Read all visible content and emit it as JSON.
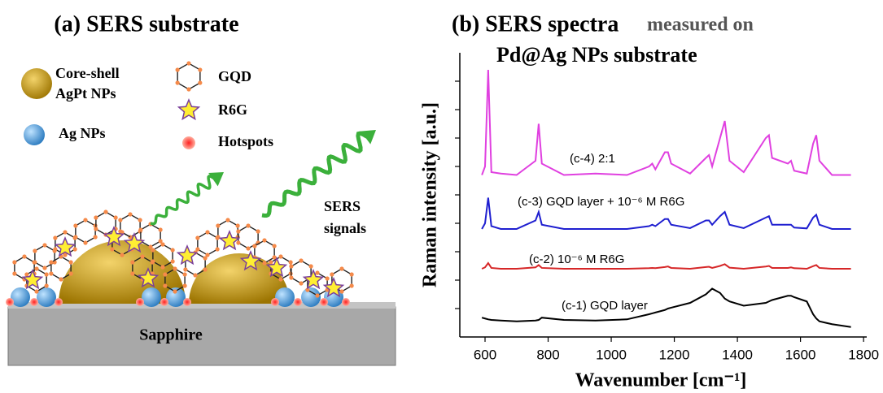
{
  "panel_a": {
    "title": "(a) SERS substrate",
    "legend": {
      "core_shell": [
        "Core-shell",
        "AgPt NPs"
      ],
      "ag": "Ag NPs",
      "gqd": "GQD",
      "r6g": "R6G",
      "hotspots": "Hotspots"
    },
    "signals": [
      "SERS",
      "signals"
    ],
    "substrate": "Sapphire"
  },
  "chart_data": {
    "type": "line",
    "title": [
      "(b) SERS spectra",
      "measured on",
      "Pd@Ag NPs substrate"
    ],
    "x_label": "Wavenumber [cm⁻¹]",
    "y_label": "Raman intensity [a.u.]",
    "xlim": [
      520,
      1810
    ],
    "ylim": [
      0,
      100
    ],
    "xticks": [
      600,
      800,
      1000,
      1200,
      1400,
      1600,
      1800
    ],
    "x": [
      590,
      600,
      610,
      620,
      650,
      700,
      760,
      770,
      780,
      850,
      950,
      1050,
      1120,
      1130,
      1140,
      1170,
      1180,
      1190,
      1250,
      1300,
      1310,
      1320,
      1345,
      1360,
      1375,
      1420,
      1490,
      1500,
      1510,
      1560,
      1570,
      1580,
      1620,
      1640,
      1650,
      1660,
      1700,
      1760
    ],
    "series": [
      {
        "name": "(c-1) GQD layer",
        "color": "#000000",
        "values": [
          6.8,
          6.5,
          6.2,
          6.0,
          5.8,
          5.5,
          5.8,
          6.0,
          6.8,
          6.0,
          5.8,
          6.2,
          8.0,
          8.3,
          8.6,
          9.5,
          10,
          10.3,
          12,
          15,
          16,
          17,
          15.5,
          13.5,
          12.5,
          11,
          12,
          12.5,
          13,
          14.5,
          14.5,
          14,
          12.5,
          8,
          6.5,
          5.5,
          4.5,
          3.5
        ]
      },
      {
        "name": "(c-2) 10⁻⁶ M R6G",
        "color": "#d62728",
        "values": [
          24,
          24.5,
          26,
          24.3,
          24,
          24,
          24.5,
          25.3,
          24.3,
          24,
          24,
          24,
          24.2,
          24.3,
          24.2,
          24.6,
          24.8,
          24.3,
          24,
          24.6,
          24.7,
          24.3,
          25,
          25.6,
          24.4,
          24,
          24.8,
          25,
          24.3,
          24.3,
          24.5,
          24.2,
          24,
          24.9,
          25.3,
          24.3,
          24,
          24
        ]
      },
      {
        "name": "(c-3) GQD layer + 10⁻⁶ M R6G",
        "color": "#1f1fd0",
        "values": [
          38,
          40,
          49,
          39,
          38,
          38,
          41,
          44,
          39.5,
          38,
          38,
          38,
          39,
          39.5,
          39,
          41.5,
          41.5,
          39.5,
          38.3,
          41,
          41,
          39.5,
          42.5,
          44,
          39.5,
          38.3,
          42,
          42.5,
          39.5,
          39.5,
          39.5,
          38.5,
          38.2,
          42,
          43,
          39.5,
          38,
          38
        ]
      },
      {
        "name": "(c-4) 2:1",
        "color": "#e040e0",
        "values": [
          57,
          60,
          94,
          58,
          57.5,
          57,
          62,
          75,
          61,
          57,
          57.5,
          57,
          60,
          61,
          59,
          65,
          65,
          61,
          57.5,
          63,
          64,
          60,
          70,
          76,
          62,
          58,
          70,
          71,
          63,
          61,
          62,
          58.5,
          57.5,
          68,
          71,
          62,
          57,
          57
        ]
      }
    ]
  }
}
